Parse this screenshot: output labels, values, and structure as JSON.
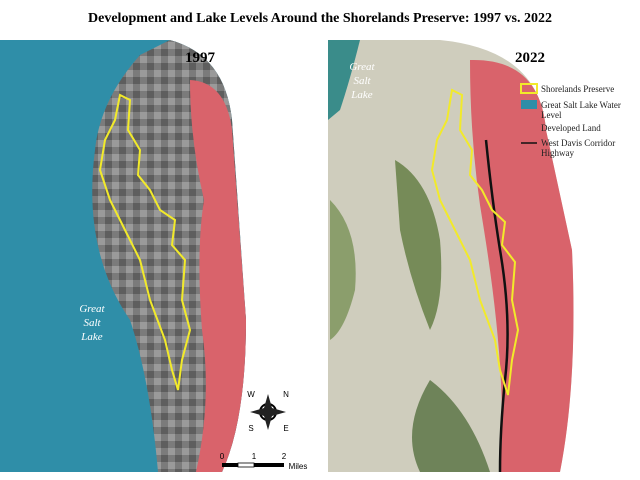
{
  "title": "Development and Lake Levels Around the Shorelands Preserve: 1997 vs. 2022",
  "panels": [
    {
      "year": "1997",
      "lake_label": [
        "Great",
        "Salt",
        "Lake"
      ]
    },
    {
      "year": "2022",
      "lake_label": [
        "Great",
        "Salt",
        "Lake"
      ]
    }
  ],
  "legend": [
    {
      "label": "Shorelands Preserve"
    },
    {
      "label": "Great Salt Lake Water Level"
    },
    {
      "label": "Developed Land"
    },
    {
      "label": "West Davis Corridor Highway"
    }
  ],
  "scale_bar": {
    "ticks": [
      0,
      1,
      2
    ],
    "unit": "Miles"
  },
  "compass": {
    "n": "N",
    "e": "E",
    "s": "S",
    "w": "W"
  }
}
